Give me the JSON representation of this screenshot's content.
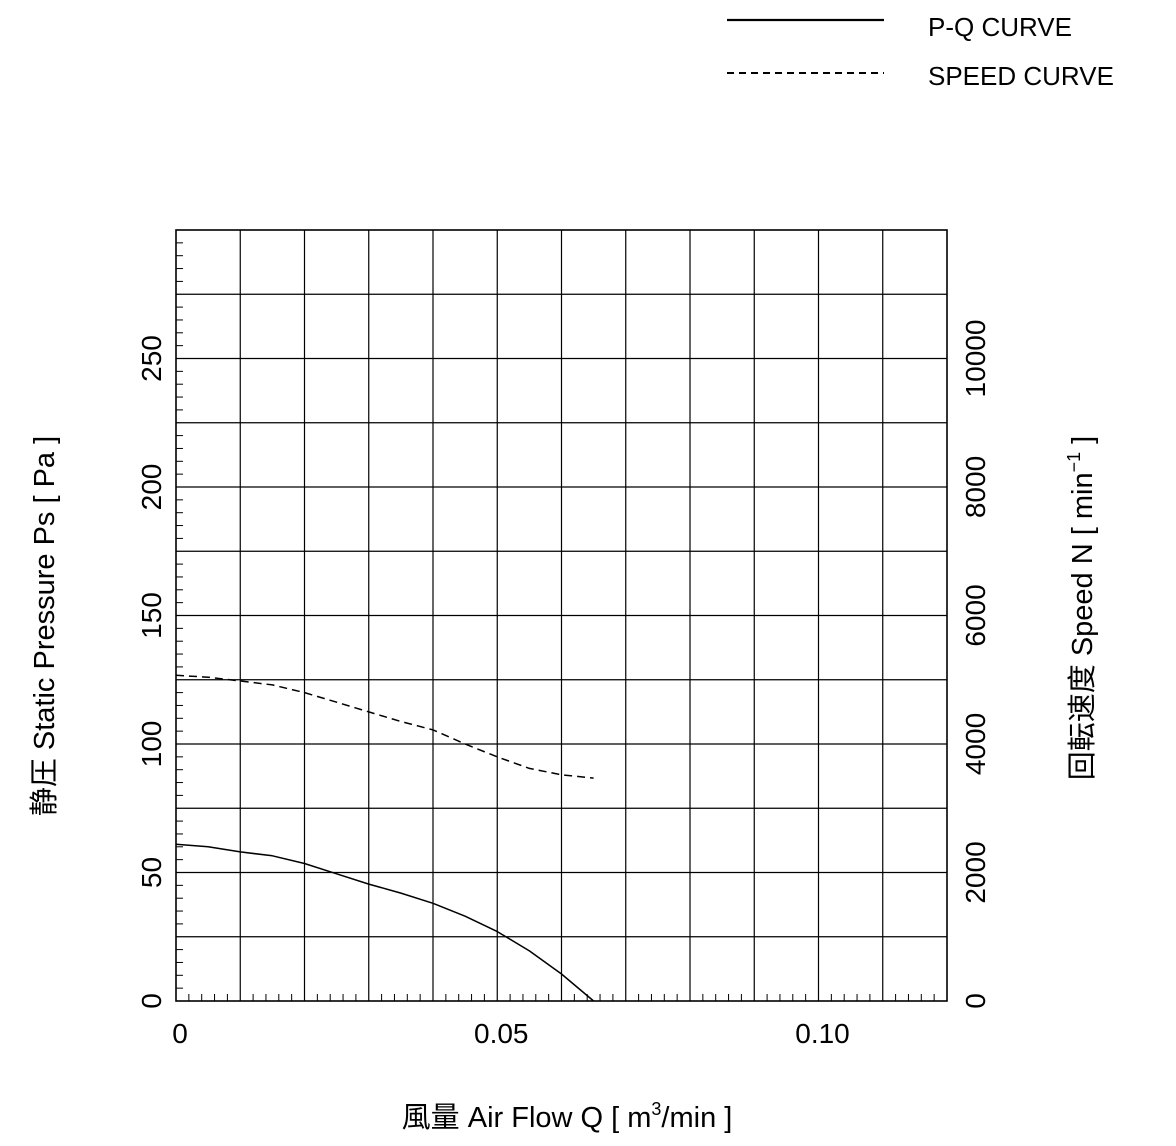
{
  "legend": {
    "placement": "top-right",
    "items": [
      {
        "label": "P-Q CURVE",
        "style": "solid"
      },
      {
        "label": "SPEED CURVE",
        "style": "dashed"
      }
    ]
  },
  "chart_data": {
    "type": "line",
    "xlabel": {
      "prefix": "風量 Air Flow Q [ m",
      "sup": "3",
      "suffix": "/min ]"
    },
    "ylabel": "静圧 Static Pressure Ps [ Pa ]",
    "y2label": {
      "prefix": "回転速度 Speed N [ min",
      "sup": "−1",
      "suffix": " ]"
    },
    "xlim": [
      0,
      0.12
    ],
    "ylim": [
      0,
      300
    ],
    "y2lim": [
      0,
      12000
    ],
    "grid": true,
    "x_ticks": [
      {
        "value": 0,
        "label": "0"
      },
      {
        "value": 0.05,
        "label": "0.05"
      },
      {
        "value": 0.1,
        "label": "0.10"
      }
    ],
    "y_ticks": [
      {
        "value": 0,
        "label": "0"
      },
      {
        "value": 50,
        "label": "50"
      },
      {
        "value": 100,
        "label": "100"
      },
      {
        "value": 150,
        "label": "150"
      },
      {
        "value": 200,
        "label": "200"
      },
      {
        "value": 250,
        "label": "250"
      }
    ],
    "y2_ticks": [
      {
        "value": 0,
        "label": "0"
      },
      {
        "value": 2000,
        "label": "2000"
      },
      {
        "value": 4000,
        "label": "4000"
      },
      {
        "value": 6000,
        "label": "6000"
      },
      {
        "value": 8000,
        "label": "8000"
      },
      {
        "value": 10000,
        "label": "10000"
      }
    ],
    "series": [
      {
        "name": "P-Q CURVE",
        "axis": "left",
        "style": "solid",
        "x": [
          0,
          0.005,
          0.01,
          0.015,
          0.02,
          0.025,
          0.03,
          0.035,
          0.04,
          0.045,
          0.05,
          0.055,
          0.06,
          0.065
        ],
        "y": [
          61,
          60,
          58,
          56.5,
          53.5,
          49.5,
          45.5,
          42,
          38,
          33,
          27,
          19.5,
          10.5,
          0
        ]
      },
      {
        "name": "SPEED CURVE",
        "axis": "right",
        "style": "dashed",
        "x": [
          0,
          0.005,
          0.01,
          0.015,
          0.02,
          0.025,
          0.03,
          0.035,
          0.04,
          0.045,
          0.05,
          0.055,
          0.06,
          0.065
        ],
        "y": [
          5070,
          5040,
          4980,
          4920,
          4800,
          4650,
          4500,
          4350,
          4220,
          4000,
          3800,
          3620,
          3520,
          3470
        ]
      }
    ]
  }
}
